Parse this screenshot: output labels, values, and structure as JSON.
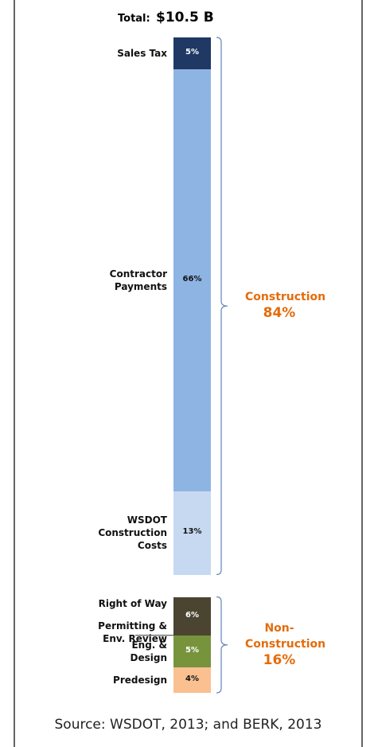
{
  "chart_data": {
    "type": "stacked_bar",
    "title": "Total:",
    "total": 10.5,
    "total_label": "$10.5 B",
    "groups": [
      {
        "name": "Construction",
        "value": 84,
        "value_label": "84%",
        "color": "#e46c0a",
        "segments": [
          {
            "name": "Sales Tax",
            "value": 5,
            "value_label": "5%",
            "color": "#1f3864"
          },
          {
            "name": "Contractor Payments",
            "value": 66,
            "value_label": "66%",
            "color": "#8eb4e3"
          },
          {
            "name": "WSDOT Construction Costs",
            "value": 13,
            "value_label": "13%",
            "color": "#c6d9f1"
          }
        ]
      },
      {
        "name": "Non-Construction",
        "value": 16,
        "value_label": "16%",
        "color": "#e46c0a",
        "segments": [
          {
            "name": "Right of Way",
            "note": "Permitting & Env. Review",
            "value": 6,
            "value_label": "6%",
            "color": "#4a4430"
          },
          {
            "name": "Eng. & Design",
            "value": 5,
            "value_label": "5%",
            "color": "#77933c"
          },
          {
            "name": "Predesign",
            "value": 4,
            "value_label": "4%",
            "color": "#fac090"
          }
        ]
      }
    ],
    "source": "Source: WSDOT, 2013; and BERK, 2013"
  }
}
